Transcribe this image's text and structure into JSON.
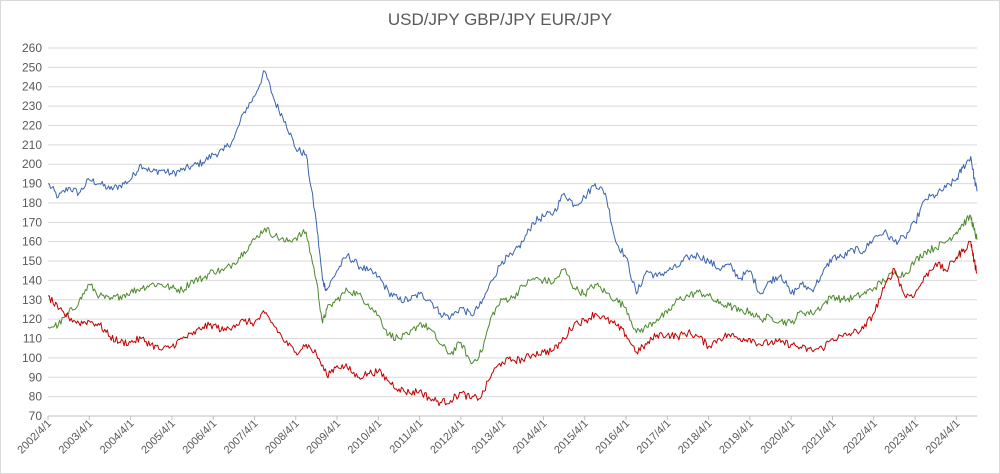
{
  "chart_data": {
    "type": "line",
    "title": "USD/JPY GBP/JPY EUR/JPY",
    "xlabel": "",
    "ylabel": "",
    "ylim": [
      70,
      260
    ],
    "yticks": [
      70,
      80,
      90,
      100,
      110,
      120,
      130,
      140,
      150,
      160,
      170,
      180,
      190,
      200,
      210,
      220,
      230,
      240,
      250,
      260
    ],
    "xlim": [
      2002.25,
      2024.75
    ],
    "xtick_labels": [
      "2002/4/1",
      "2003/4/1",
      "2004/4/1",
      "2005/4/1",
      "2006/4/1",
      "2007/4/1",
      "2008/4/1",
      "2009/4/1",
      "2010/4/1",
      "2011/4/1",
      "2012/4/1",
      "2013/4/1",
      "2014/4/1",
      "2015/4/1",
      "2016/4/1",
      "2017/4/1",
      "2018/4/1",
      "2019/4/1",
      "2020/4/1",
      "2021/4/1",
      "2022/4/1",
      "2023/4/1",
      "2024/4/1"
    ],
    "grid": true,
    "legend": "none",
    "colors": {
      "blue": "#3b64ad",
      "green": "#4f8a2e",
      "red": "#c00000",
      "grid": "#d9d9d9",
      "text": "#595959"
    },
    "series": [
      {
        "color": "#3b64ad",
        "points": [
          [
            2002.25,
            190
          ],
          [
            2002.5,
            183
          ],
          [
            2002.75,
            188
          ],
          [
            2003.0,
            185
          ],
          [
            2003.25,
            192
          ],
          [
            2003.5,
            190
          ],
          [
            2003.75,
            187
          ],
          [
            2004.0,
            189
          ],
          [
            2004.25,
            192
          ],
          [
            2004.5,
            200
          ],
          [
            2004.75,
            196
          ],
          [
            2005.0,
            197
          ],
          [
            2005.25,
            195
          ],
          [
            2005.5,
            197
          ],
          [
            2005.75,
            199
          ],
          [
            2006.0,
            201
          ],
          [
            2006.25,
            205
          ],
          [
            2006.5,
            207
          ],
          [
            2006.75,
            213
          ],
          [
            2007.0,
            227
          ],
          [
            2007.25,
            235
          ],
          [
            2007.5,
            248
          ],
          [
            2007.75,
            232
          ],
          [
            2008.0,
            222
          ],
          [
            2008.25,
            208
          ],
          [
            2008.5,
            205
          ],
          [
            2008.75,
            170
          ],
          [
            2008.9,
            140
          ],
          [
            2009.0,
            135
          ],
          [
            2009.25,
            145
          ],
          [
            2009.5,
            153
          ],
          [
            2009.75,
            148
          ],
          [
            2010.0,
            145
          ],
          [
            2010.25,
            142
          ],
          [
            2010.5,
            134
          ],
          [
            2010.75,
            130
          ],
          [
            2011.0,
            130
          ],
          [
            2011.25,
            133
          ],
          [
            2011.5,
            130
          ],
          [
            2011.75,
            123
          ],
          [
            2012.0,
            121
          ],
          [
            2012.25,
            126
          ],
          [
            2012.5,
            122
          ],
          [
            2012.75,
            128
          ],
          [
            2013.0,
            140
          ],
          [
            2013.25,
            150
          ],
          [
            2013.5,
            153
          ],
          [
            2013.75,
            160
          ],
          [
            2014.0,
            170
          ],
          [
            2014.25,
            173
          ],
          [
            2014.5,
            175
          ],
          [
            2014.75,
            185
          ],
          [
            2015.0,
            179
          ],
          [
            2015.25,
            183
          ],
          [
            2015.5,
            190
          ],
          [
            2015.75,
            185
          ],
          [
            2016.0,
            160
          ],
          [
            2016.25,
            152
          ],
          [
            2016.5,
            133
          ],
          [
            2016.75,
            145
          ],
          [
            2017.0,
            142
          ],
          [
            2017.25,
            145
          ],
          [
            2017.5,
            147
          ],
          [
            2017.75,
            152
          ],
          [
            2018.0,
            153
          ],
          [
            2018.25,
            150
          ],
          [
            2018.5,
            146
          ],
          [
            2018.75,
            148
          ],
          [
            2019.0,
            141
          ],
          [
            2019.25,
            145
          ],
          [
            2019.5,
            133
          ],
          [
            2019.75,
            140
          ],
          [
            2020.0,
            143
          ],
          [
            2020.25,
            133
          ],
          [
            2020.5,
            138
          ],
          [
            2020.75,
            135
          ],
          [
            2021.0,
            143
          ],
          [
            2021.25,
            152
          ],
          [
            2021.5,
            152
          ],
          [
            2021.75,
            156
          ],
          [
            2022.0,
            155
          ],
          [
            2022.25,
            162
          ],
          [
            2022.5,
            165
          ],
          [
            2022.75,
            160
          ],
          [
            2023.0,
            162
          ],
          [
            2023.25,
            170
          ],
          [
            2023.5,
            182
          ],
          [
            2023.75,
            184
          ],
          [
            2024.0,
            188
          ],
          [
            2024.25,
            192
          ],
          [
            2024.4,
            198
          ],
          [
            2024.6,
            204
          ],
          [
            2024.68,
            193
          ],
          [
            2024.75,
            186
          ]
        ]
      },
      {
        "color": "#4f8a2e",
        "points": [
          [
            2002.25,
            116
          ],
          [
            2002.5,
            117
          ],
          [
            2002.75,
            123
          ],
          [
            2003.0,
            129
          ],
          [
            2003.25,
            138
          ],
          [
            2003.5,
            132
          ],
          [
            2003.75,
            130
          ],
          [
            2004.0,
            132
          ],
          [
            2004.25,
            134
          ],
          [
            2004.5,
            136
          ],
          [
            2004.75,
            138
          ],
          [
            2005.0,
            138
          ],
          [
            2005.25,
            136
          ],
          [
            2005.5,
            135
          ],
          [
            2005.75,
            140
          ],
          [
            2006.0,
            141
          ],
          [
            2006.25,
            145
          ],
          [
            2006.5,
            145
          ],
          [
            2006.75,
            149
          ],
          [
            2007.0,
            155
          ],
          [
            2007.25,
            161
          ],
          [
            2007.5,
            167
          ],
          [
            2007.75,
            163
          ],
          [
            2008.0,
            160
          ],
          [
            2008.25,
            162
          ],
          [
            2008.5,
            165
          ],
          [
            2008.75,
            140
          ],
          [
            2008.9,
            118
          ],
          [
            2009.0,
            125
          ],
          [
            2009.25,
            130
          ],
          [
            2009.5,
            135
          ],
          [
            2009.75,
            133
          ],
          [
            2010.0,
            128
          ],
          [
            2010.25,
            122
          ],
          [
            2010.5,
            112
          ],
          [
            2010.75,
            110
          ],
          [
            2011.0,
            112
          ],
          [
            2011.25,
            118
          ],
          [
            2011.5,
            115
          ],
          [
            2011.75,
            107
          ],
          [
            2012.0,
            102
          ],
          [
            2012.25,
            108
          ],
          [
            2012.5,
            97
          ],
          [
            2012.75,
            103
          ],
          [
            2013.0,
            122
          ],
          [
            2013.25,
            130
          ],
          [
            2013.5,
            131
          ],
          [
            2013.75,
            137
          ],
          [
            2014.0,
            141
          ],
          [
            2014.25,
            140
          ],
          [
            2014.5,
            139
          ],
          [
            2014.75,
            146
          ],
          [
            2015.0,
            136
          ],
          [
            2015.25,
            133
          ],
          [
            2015.5,
            138
          ],
          [
            2015.75,
            134
          ],
          [
            2016.0,
            130
          ],
          [
            2016.25,
            126
          ],
          [
            2016.5,
            113
          ],
          [
            2016.75,
            116
          ],
          [
            2017.0,
            120
          ],
          [
            2017.25,
            123
          ],
          [
            2017.5,
            130
          ],
          [
            2017.75,
            132
          ],
          [
            2018.0,
            134
          ],
          [
            2018.25,
            132
          ],
          [
            2018.5,
            128
          ],
          [
            2018.75,
            127
          ],
          [
            2019.0,
            124
          ],
          [
            2019.25,
            124
          ],
          [
            2019.5,
            120
          ],
          [
            2019.75,
            121
          ],
          [
            2020.0,
            119
          ],
          [
            2020.25,
            118
          ],
          [
            2020.5,
            124
          ],
          [
            2020.75,
            123
          ],
          [
            2021.0,
            127
          ],
          [
            2021.25,
            132
          ],
          [
            2021.5,
            130
          ],
          [
            2021.75,
            131
          ],
          [
            2022.0,
            133
          ],
          [
            2022.25,
            136
          ],
          [
            2022.5,
            140
          ],
          [
            2022.75,
            144
          ],
          [
            2023.0,
            143
          ],
          [
            2023.25,
            150
          ],
          [
            2023.5,
            155
          ],
          [
            2023.75,
            157
          ],
          [
            2024.0,
            160
          ],
          [
            2024.25,
            165
          ],
          [
            2024.4,
            169
          ],
          [
            2024.6,
            173
          ],
          [
            2024.68,
            166
          ],
          [
            2024.75,
            161
          ]
        ]
      },
      {
        "color": "#c00000",
        "points": [
          [
            2002.25,
            132
          ],
          [
            2002.5,
            125
          ],
          [
            2002.75,
            121
          ],
          [
            2003.0,
            118
          ],
          [
            2003.25,
            119
          ],
          [
            2003.5,
            117
          ],
          [
            2003.75,
            111
          ],
          [
            2004.0,
            108
          ],
          [
            2004.25,
            108
          ],
          [
            2004.5,
            110
          ],
          [
            2004.75,
            107
          ],
          [
            2005.0,
            104
          ],
          [
            2005.25,
            106
          ],
          [
            2005.5,
            110
          ],
          [
            2005.75,
            112
          ],
          [
            2006.0,
            116
          ],
          [
            2006.25,
            117
          ],
          [
            2006.5,
            114
          ],
          [
            2006.75,
            117
          ],
          [
            2007.0,
            119
          ],
          [
            2007.25,
            118
          ],
          [
            2007.5,
            123
          ],
          [
            2007.75,
            116
          ],
          [
            2008.0,
            108
          ],
          [
            2008.25,
            103
          ],
          [
            2008.5,
            107
          ],
          [
            2008.75,
            102
          ],
          [
            2009.0,
            91
          ],
          [
            2009.25,
            96
          ],
          [
            2009.5,
            95
          ],
          [
            2009.75,
            90
          ],
          [
            2010.0,
            92
          ],
          [
            2010.25,
            93
          ],
          [
            2010.5,
            88
          ],
          [
            2010.75,
            84
          ],
          [
            2011.0,
            82
          ],
          [
            2011.25,
            83
          ],
          [
            2011.5,
            79
          ],
          [
            2011.75,
            77
          ],
          [
            2012.0,
            78
          ],
          [
            2012.25,
            82
          ],
          [
            2012.5,
            79
          ],
          [
            2012.75,
            80
          ],
          [
            2013.0,
            92
          ],
          [
            2013.25,
            98
          ],
          [
            2013.5,
            99
          ],
          [
            2013.75,
            99
          ],
          [
            2014.0,
            102
          ],
          [
            2014.25,
            103
          ],
          [
            2014.5,
            104
          ],
          [
            2014.75,
            110
          ],
          [
            2015.0,
            118
          ],
          [
            2015.25,
            119
          ],
          [
            2015.5,
            123
          ],
          [
            2015.75,
            120
          ],
          [
            2016.0,
            117
          ],
          [
            2016.25,
            112
          ],
          [
            2016.5,
            103
          ],
          [
            2016.75,
            107
          ],
          [
            2017.0,
            112
          ],
          [
            2017.25,
            112
          ],
          [
            2017.5,
            111
          ],
          [
            2017.75,
            113
          ],
          [
            2018.0,
            111
          ],
          [
            2018.25,
            106
          ],
          [
            2018.5,
            110
          ],
          [
            2018.75,
            112
          ],
          [
            2019.0,
            110
          ],
          [
            2019.25,
            110
          ],
          [
            2019.5,
            107
          ],
          [
            2019.75,
            108
          ],
          [
            2020.0,
            108
          ],
          [
            2020.25,
            107
          ],
          [
            2020.5,
            105
          ],
          [
            2020.75,
            104
          ],
          [
            2021.0,
            105
          ],
          [
            2021.25,
            110
          ],
          [
            2021.5,
            111
          ],
          [
            2021.75,
            113
          ],
          [
            2022.0,
            115
          ],
          [
            2022.25,
            123
          ],
          [
            2022.5,
            136
          ],
          [
            2022.75,
            146
          ],
          [
            2023.0,
            132
          ],
          [
            2023.25,
            133
          ],
          [
            2023.5,
            142
          ],
          [
            2023.75,
            149
          ],
          [
            2024.0,
            145
          ],
          [
            2024.25,
            152
          ],
          [
            2024.4,
            155
          ],
          [
            2024.6,
            160
          ],
          [
            2024.68,
            150
          ],
          [
            2024.75,
            144
          ]
        ]
      }
    ]
  }
}
